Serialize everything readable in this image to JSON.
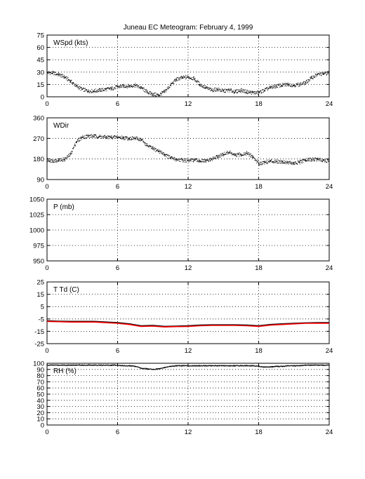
{
  "title": "Juneau EC Meteogram:  February  4, 1999",
  "chart_data": [
    {
      "type": "scatter",
      "panel_label": "WSpd (kts)",
      "xlim": [
        0,
        24
      ],
      "ylim": [
        0,
        75
      ],
      "xticks": [
        0,
        6,
        12,
        18,
        24
      ],
      "yticks": [
        0,
        15,
        30,
        45,
        60,
        75
      ],
      "grid": true,
      "legend": "none",
      "series": [
        {
          "color": "#000000",
          "x": [
            0,
            0.5,
            1,
            1.5,
            2,
            2.5,
            3,
            3.5,
            4,
            4.5,
            5,
            5.5,
            6,
            6.5,
            7,
            7.5,
            8,
            8.5,
            9,
            9.5,
            10,
            10.5,
            11,
            11.5,
            12,
            12.5,
            13,
            13.5,
            14,
            14.5,
            15,
            15.5,
            16,
            16.5,
            17,
            17.5,
            18,
            18.5,
            19,
            19.5,
            20,
            20.5,
            21,
            21.5,
            22,
            22.5,
            23,
            23.5,
            24
          ],
          "y": [
            29,
            29,
            27,
            24,
            19,
            13,
            9,
            7,
            7,
            8,
            9,
            10,
            12,
            13,
            13,
            14,
            11,
            6,
            3,
            2,
            6,
            14,
            21,
            23,
            24,
            22,
            15,
            11,
            8,
            9,
            7,
            8,
            6,
            8,
            6,
            5,
            5,
            8,
            11,
            13,
            14,
            15,
            14,
            15,
            17,
            23,
            27,
            28,
            29
          ]
        }
      ]
    },
    {
      "type": "scatter",
      "panel_label": "WDir",
      "xlim": [
        0,
        24
      ],
      "ylim": [
        90,
        360
      ],
      "xticks": [
        0,
        6,
        12,
        18,
        24
      ],
      "yticks": [
        90,
        180,
        270,
        360
      ],
      "grid": true,
      "legend": "none",
      "series": [
        {
          "color": "#000000",
          "x": [
            0,
            0.5,
            1,
            1.5,
            2,
            2.5,
            3,
            3.5,
            4,
            4.5,
            5,
            5.5,
            6,
            6.5,
            7,
            7.5,
            8,
            8.5,
            9,
            9.5,
            10,
            10.5,
            11,
            11.5,
            12,
            12.5,
            13,
            13.5,
            14,
            14.5,
            15,
            15.5,
            16,
            16.5,
            17,
            17.5,
            18,
            18.5,
            19,
            19.5,
            20,
            20.5,
            21,
            21.5,
            22,
            22.5,
            23,
            23.5,
            24
          ],
          "y": [
            175,
            172,
            175,
            178,
            200,
            255,
            275,
            280,
            280,
            278,
            275,
            275,
            275,
            273,
            270,
            270,
            265,
            240,
            225,
            215,
            200,
            185,
            178,
            175,
            172,
            175,
            172,
            170,
            178,
            190,
            200,
            210,
            195,
            200,
            205,
            190,
            160,
            165,
            170,
            170,
            168,
            165,
            160,
            165,
            175,
            178,
            178,
            175,
            172
          ]
        }
      ]
    },
    {
      "type": "line",
      "panel_label": "P (mb)",
      "xlim": [
        0,
        24
      ],
      "ylim": [
        950,
        1050
      ],
      "xticks": [
        0,
        6,
        12,
        18,
        24
      ],
      "yticks": [
        950,
        975,
        1000,
        1025,
        1050
      ],
      "grid": true,
      "legend": "none",
      "series": []
    },
    {
      "type": "line",
      "panel_label": "T Td (C)",
      "xlim": [
        0,
        24
      ],
      "ylim": [
        -25,
        25
      ],
      "xticks": [
        0,
        6,
        12,
        18,
        24
      ],
      "yticks": [
        -25,
        -15,
        -5,
        5,
        15,
        25
      ],
      "grid": true,
      "legend": "none",
      "series": [
        {
          "color": "#000000",
          "x": [
            0,
            1,
            2,
            3,
            4,
            5,
            6,
            7,
            8,
            9,
            10,
            11,
            12,
            13,
            14,
            15,
            16,
            17,
            18,
            19,
            20,
            21,
            22,
            23,
            24
          ],
          "y": [
            -6.5,
            -6.8,
            -7,
            -7,
            -7,
            -7.5,
            -8,
            -9,
            -10.5,
            -10.2,
            -11,
            -10.8,
            -10.5,
            -10,
            -9.8,
            -9.8,
            -9.8,
            -10,
            -10.5,
            -9.5,
            -9,
            -8.5,
            -8.2,
            -8,
            -8
          ]
        },
        {
          "color": "#ff0000",
          "x": [
            0,
            1,
            2,
            3,
            4,
            5,
            6,
            7,
            8,
            9,
            10,
            11,
            12,
            13,
            14,
            15,
            16,
            17,
            18,
            19,
            20,
            21,
            22,
            23,
            24
          ],
          "y": [
            -7,
            -7.2,
            -7.5,
            -7.5,
            -7.5,
            -8,
            -8.5,
            -9.5,
            -11,
            -10.8,
            -11.5,
            -11.2,
            -11,
            -10.5,
            -10.2,
            -10.2,
            -10.2,
            -10.5,
            -11,
            -10,
            -9.5,
            -9,
            -8.5,
            -8.4,
            -8.5
          ]
        }
      ]
    },
    {
      "type": "scatter",
      "panel_label": "RH (%)",
      "xlim": [
        0,
        24
      ],
      "ylim": [
        0,
        100
      ],
      "xticks": [
        0,
        6,
        12,
        18,
        24
      ],
      "yticks": [
        0,
        10,
        20,
        30,
        40,
        50,
        60,
        70,
        80,
        90,
        100
      ],
      "grid": true,
      "legend": "none",
      "series": [
        {
          "color": "#000000",
          "x": [
            0,
            0.5,
            1,
            1.5,
            2,
            2.5,
            3,
            3.5,
            4,
            4.5,
            5,
            5.5,
            6,
            6.5,
            7,
            7.5,
            8,
            8.5,
            9,
            9.5,
            10,
            10.5,
            11,
            11.5,
            12,
            12.5,
            13,
            13.5,
            14,
            14.5,
            15,
            15.5,
            16,
            16.5,
            17,
            17.5,
            18,
            18.5,
            19,
            19.5,
            20,
            20.5,
            21,
            21.5,
            22,
            22.5,
            23,
            23.5,
            24
          ],
          "y": [
            97,
            97,
            97,
            97,
            97,
            97,
            97,
            97,
            97,
            97,
            97,
            97,
            97,
            96,
            96,
            95,
            92,
            91,
            90,
            91,
            93,
            95,
            96,
            96,
            96,
            96,
            96,
            96,
            96,
            96,
            96,
            96,
            96,
            96,
            96,
            96,
            95,
            94,
            94,
            95,
            95,
            96,
            96,
            96,
            97,
            97,
            97,
            97,
            97
          ]
        }
      ]
    }
  ]
}
